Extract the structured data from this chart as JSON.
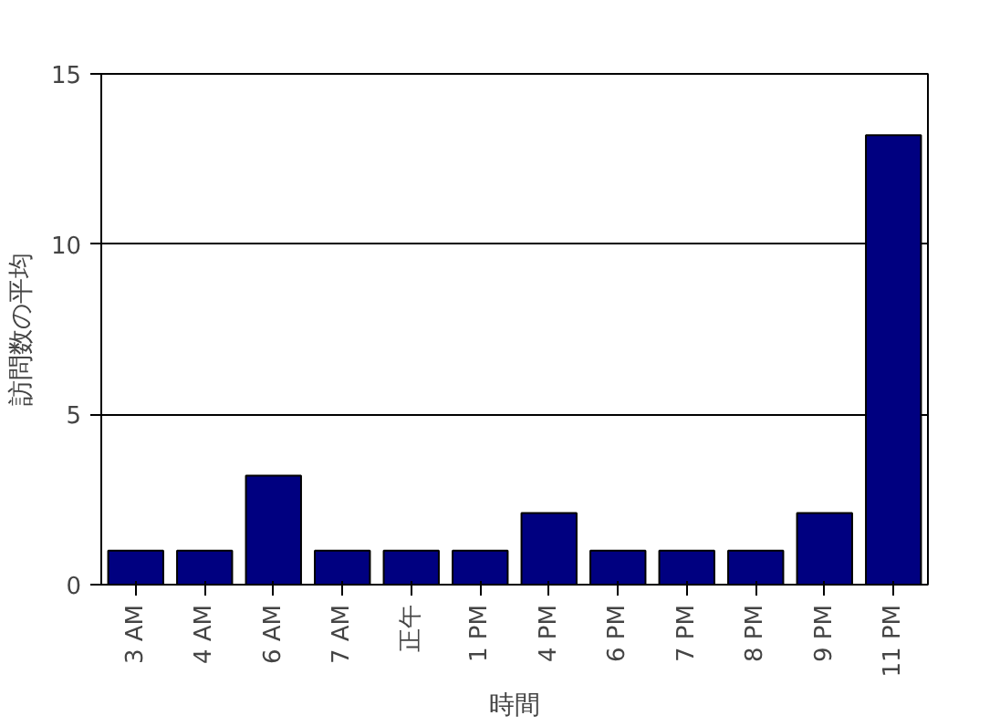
{
  "chart_data": {
    "type": "bar",
    "xlabel": "時間",
    "ylabel": "訪問数の平均",
    "categories": [
      "3 AM",
      "4 AM",
      "6 AM",
      "7 AM",
      "正午",
      "1 PM",
      "4 PM",
      "6 PM",
      "7 PM",
      "8 PM",
      "9 PM",
      "11 PM"
    ],
    "values": [
      1,
      1,
      3.2,
      1,
      1,
      1,
      2.1,
      1,
      1,
      1,
      2.1,
      13.2
    ],
    "color": "#000080",
    "ylim": [
      0,
      15
    ],
    "yticks": [
      0,
      5,
      10,
      15
    ],
    "grid": "y"
  }
}
